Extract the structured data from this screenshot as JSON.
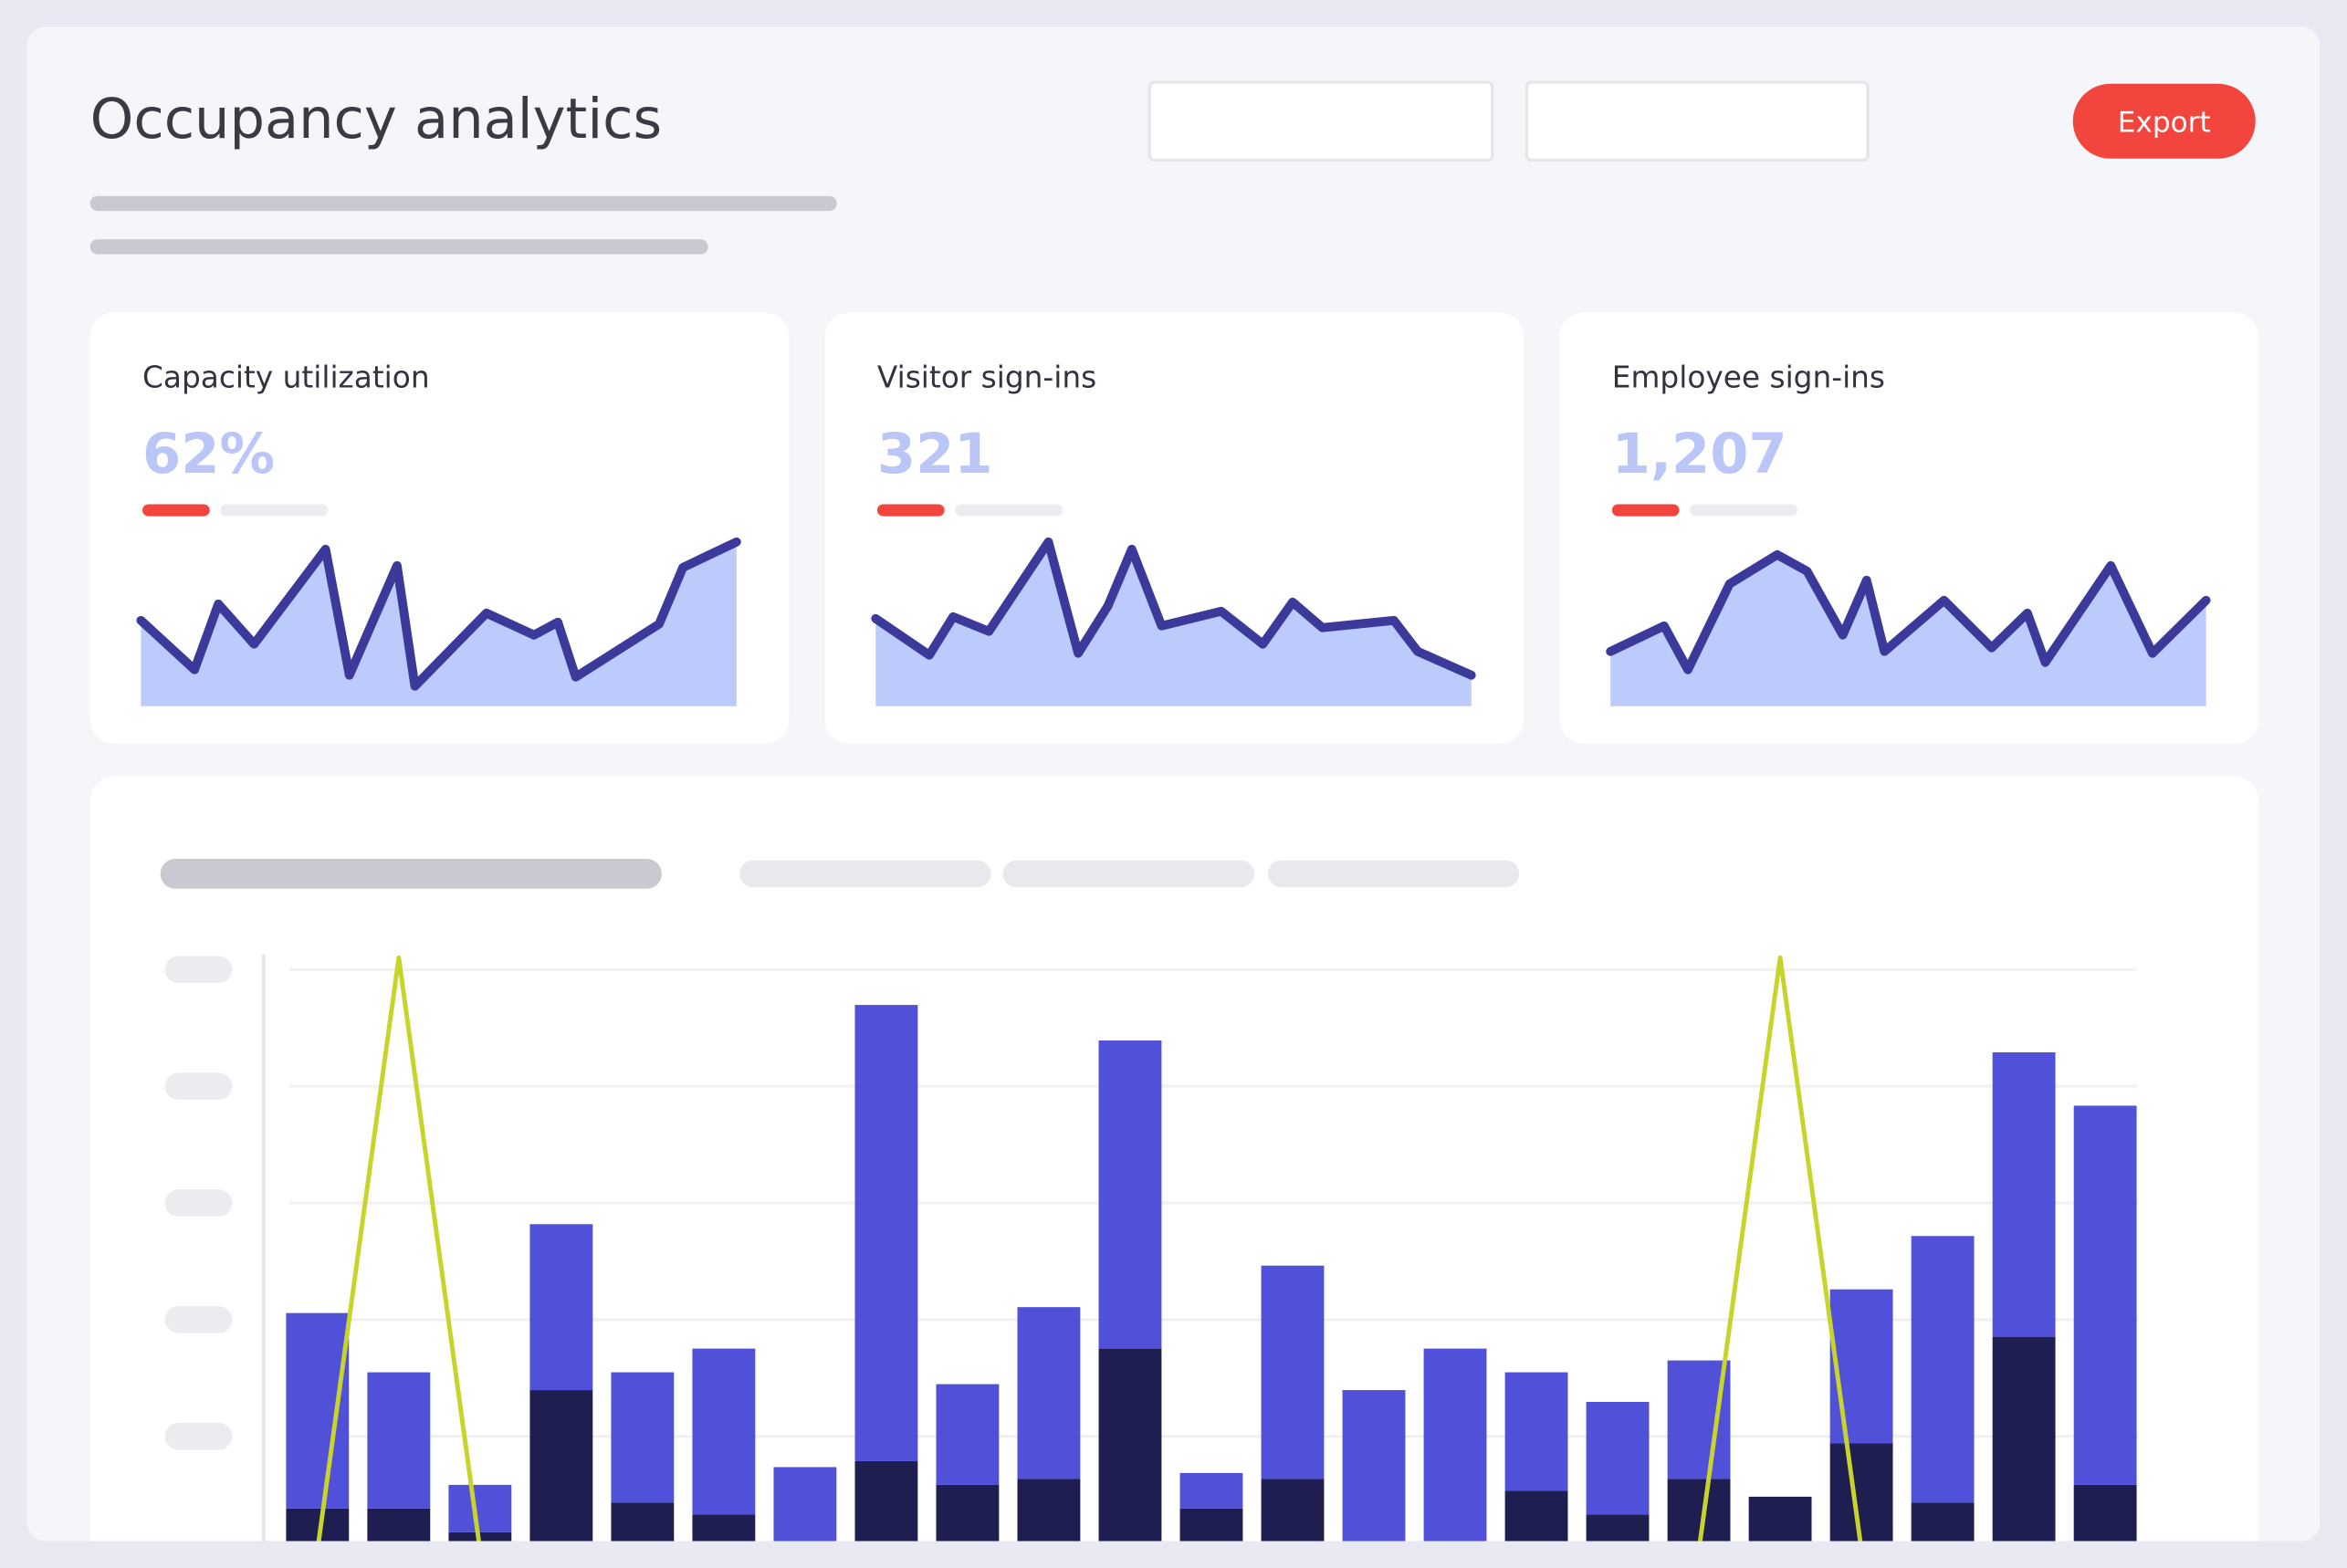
{
  "header": {
    "title": "Occupancy analytics",
    "export_button": "Export"
  },
  "cards": [
    {
      "title": "Capacity utilization",
      "value": "62%",
      "chart_data": {
        "type": "area",
        "color": "#3b3a9a",
        "fill": "#bccbfb",
        "x": [
          0,
          9,
          13,
          19,
          31,
          35,
          43,
          46,
          58,
          66,
          70,
          73,
          87,
          91,
          100
        ],
        "values": [
          47,
          20,
          56,
          34,
          86,
          17,
          77,
          11,
          51,
          39,
          46,
          16,
          45,
          76,
          90
        ],
        "xlim": [
          0,
          100
        ],
        "ylim": [
          0,
          100
        ]
      }
    },
    {
      "title": "Visitor sign-ins",
      "value": "321",
      "chart_data": {
        "type": "area",
        "color": "#3b3a9a",
        "fill": "#bccbfb",
        "x": [
          0,
          9,
          13,
          19,
          29,
          34,
          39,
          43,
          48,
          58,
          65,
          70,
          75,
          87,
          91,
          100
        ],
        "values": [
          48,
          28,
          49,
          41,
          90,
          29,
          55,
          86,
          44,
          52,
          34,
          57,
          43,
          47,
          30,
          17
        ],
        "xlim": [
          0,
          100
        ],
        "ylim": [
          0,
          100
        ]
      }
    },
    {
      "title": "Employee sign-ins",
      "value": "1,207",
      "chart_data": {
        "type": "area",
        "color": "#3b3a9a",
        "fill": "#bccbfb",
        "x": [
          0,
          9,
          13,
          20,
          28,
          33,
          39,
          43,
          46,
          56,
          64,
          70,
          73,
          84,
          91,
          100
        ],
        "values": [
          30,
          44,
          20,
          67,
          83,
          74,
          39,
          69,
          30,
          58,
          32,
          51,
          24,
          77,
          29,
          58
        ],
        "xlim": [
          0,
          100
        ],
        "ylim": [
          0,
          100
        ]
      }
    }
  ],
  "chart_data": {
    "type": "bar",
    "stacked": true,
    "grid": true,
    "categories": [
      null,
      null,
      null,
      null,
      null,
      null,
      null,
      null,
      null,
      null,
      null,
      null,
      null,
      null,
      null,
      null,
      null,
      null,
      null,
      null,
      null,
      null,
      null
    ],
    "series": [
      {
        "color": "#1e1e50",
        "values": [
          7,
          7,
          3,
          27,
          8,
          6,
          0,
          15,
          11,
          12,
          34,
          7,
          12,
          0,
          1,
          10,
          6,
          12,
          9,
          18,
          8,
          36,
          11
        ]
      },
      {
        "color": "#5050d8",
        "values": [
          33,
          23,
          8,
          28,
          22,
          28,
          14,
          77,
          17,
          29,
          52,
          6,
          36,
          27,
          33,
          20,
          19,
          20,
          0,
          26,
          45,
          48,
          64
        ]
      },
      {
        "type": "line",
        "color": "#c8d42a",
        "values": [
          0,
          100,
          0,
          0,
          0,
          0,
          0,
          0,
          0,
          0,
          0,
          0,
          0,
          0,
          0,
          0,
          0,
          0,
          100,
          0,
          0,
          0,
          0
        ]
      }
    ],
    "ylim": [
      0,
      100
    ]
  }
}
